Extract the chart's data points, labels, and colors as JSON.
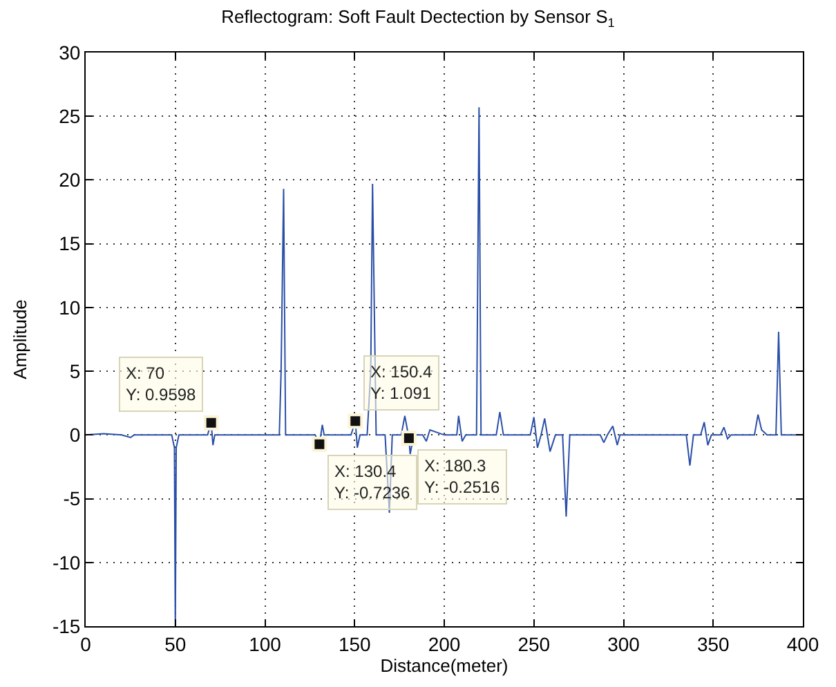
{
  "chart_data": {
    "type": "line",
    "title": "Reflectogram: Soft Fault Dectection by Sensor S$_{1}$",
    "xlabel": "Distance(meter)",
    "ylabel": "Amplitude",
    "xlim": [
      0,
      400
    ],
    "xticks": [
      0,
      50,
      100,
      150,
      200,
      250,
      300,
      350,
      400
    ],
    "ylim": [
      -15,
      30
    ],
    "yticks": [
      -15,
      -10,
      -5,
      0,
      5,
      10,
      15,
      20,
      25,
      30
    ],
    "grid": true,
    "series": [
      {
        "color": "#2a4fa8",
        "x": [
          0,
          10,
          20,
          25,
          27,
          30,
          48,
          49.5,
          50,
          50.5,
          52,
          68,
          70,
          71,
          72,
          108,
          109,
          110.4,
          111.5,
          113,
          128,
          130.4,
          132,
          133,
          148,
          150.4,
          151.5,
          153,
          157,
          159,
          160,
          162,
          167,
          169.4,
          171,
          176,
          178,
          180.3,
          181,
          183,
          188,
          190,
          192,
          200,
          207,
          208,
          210,
          212,
          218,
          219.4,
          220.5,
          223,
          229,
          231,
          233,
          248,
          250,
          252,
          254,
          256,
          259,
          262,
          266,
          268,
          270,
          287,
          289,
          291,
          294,
          296.5,
          298,
          320,
          335,
          337,
          339,
          343,
          345,
          347,
          349,
          354,
          356,
          358,
          360,
          373,
          375,
          377,
          380,
          385,
          386.5,
          388,
          400
        ],
        "values": [
          0,
          0.1,
          0,
          -0.2,
          0,
          0,
          0,
          -1,
          -15,
          -1,
          0,
          0,
          0.9598,
          -0.8,
          0,
          0,
          5,
          19.3,
          0,
          0,
          0,
          -0.7236,
          0.8,
          0,
          0,
          1.091,
          -1,
          0,
          0,
          5,
          19.7,
          0,
          0,
          -6.1,
          0,
          0,
          1.5,
          -0.2516,
          -1.5,
          0,
          0,
          -0.5,
          0.4,
          0,
          0,
          1.5,
          -0.5,
          0,
          0,
          25.7,
          0,
          0,
          0,
          1.8,
          0,
          0,
          1.4,
          -1,
          0,
          1.3,
          -1.3,
          0,
          0,
          -6.4,
          0,
          0,
          -0.6,
          0,
          0.7,
          -0.8,
          0,
          0,
          0,
          -2.4,
          0,
          0,
          1.0,
          -0.8,
          0,
          0,
          0.6,
          -0.3,
          0,
          0,
          1.6,
          0.4,
          0,
          0,
          8.1,
          0,
          0
        ]
      },
      {
        "type": "scatter",
        "color": "#111111",
        "marker": "square",
        "x": [
          70,
          130.4,
          150.4,
          180.3
        ],
        "values": [
          0.9598,
          -0.7236,
          1.091,
          -0.2516
        ]
      }
    ],
    "annotations": [
      {
        "text": "X: 70\nY: 0.9598",
        "x": 70,
        "y": 0.9598
      },
      {
        "text": "X: 130.4\nY: -0.7236",
        "x": 130.4,
        "y": -0.7236
      },
      {
        "text": "X: 150.4\nY: 1.091",
        "x": 150.4,
        "y": 1.091
      },
      {
        "text": "X: 180.3\nY: -0.2516",
        "x": 180.3,
        "y": -0.2516
      }
    ]
  }
}
